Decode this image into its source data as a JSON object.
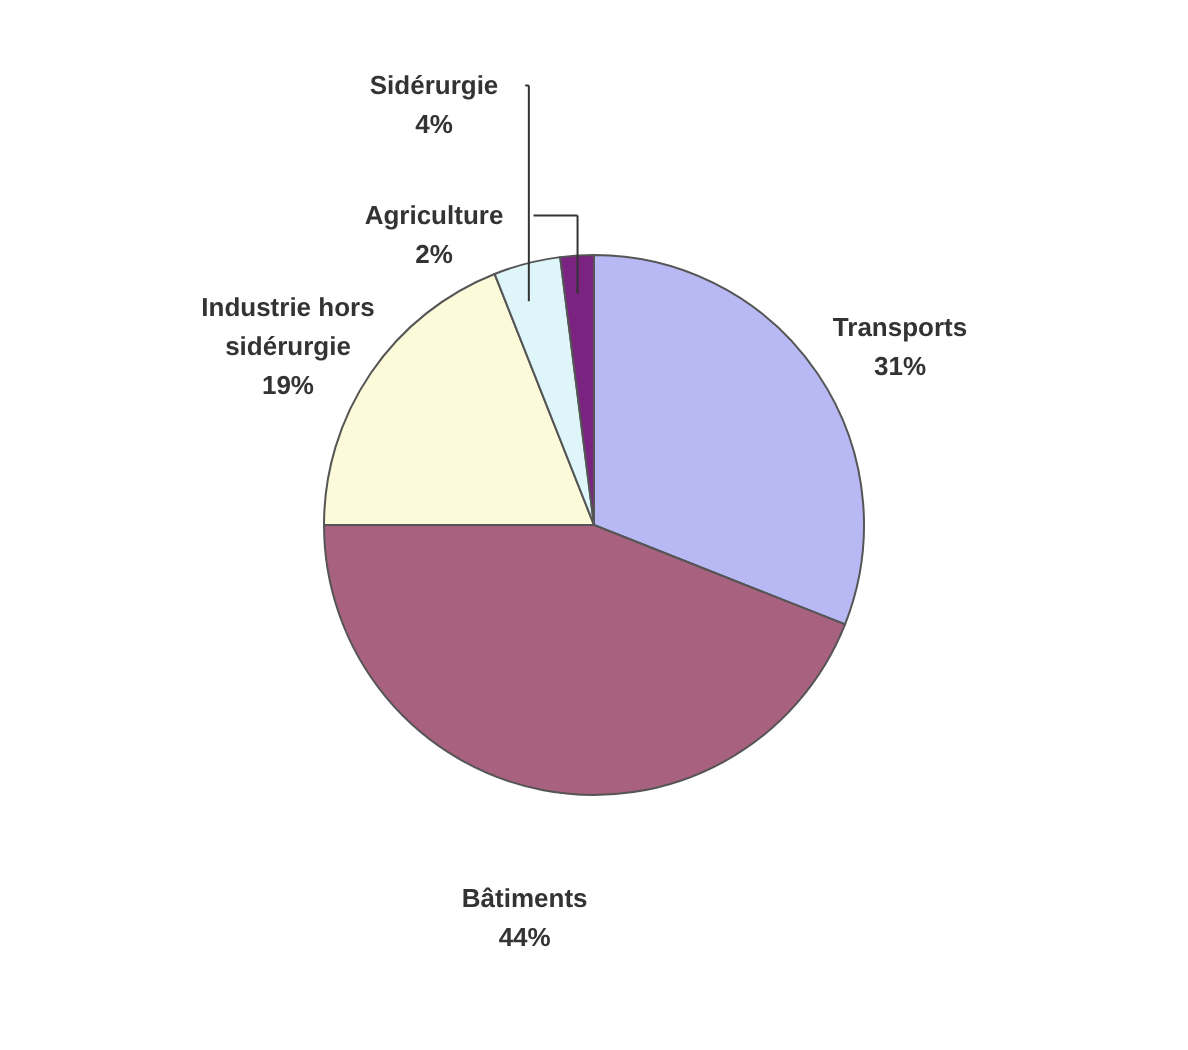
{
  "chart_data": {
    "type": "pie",
    "categories": [
      "Transports",
      "Bâtiments",
      "Industrie hors sidérurgie",
      "Sidérurgie",
      "Agriculture"
    ],
    "values": [
      31,
      44,
      19,
      4,
      2
    ],
    "value_labels": [
      "31%",
      "44%",
      "19%",
      "4%",
      "2%"
    ],
    "colors": [
      "#b8b8f4",
      "#a8617f",
      "#fcfad8",
      "#def5fa",
      "#7b2380"
    ]
  }
}
